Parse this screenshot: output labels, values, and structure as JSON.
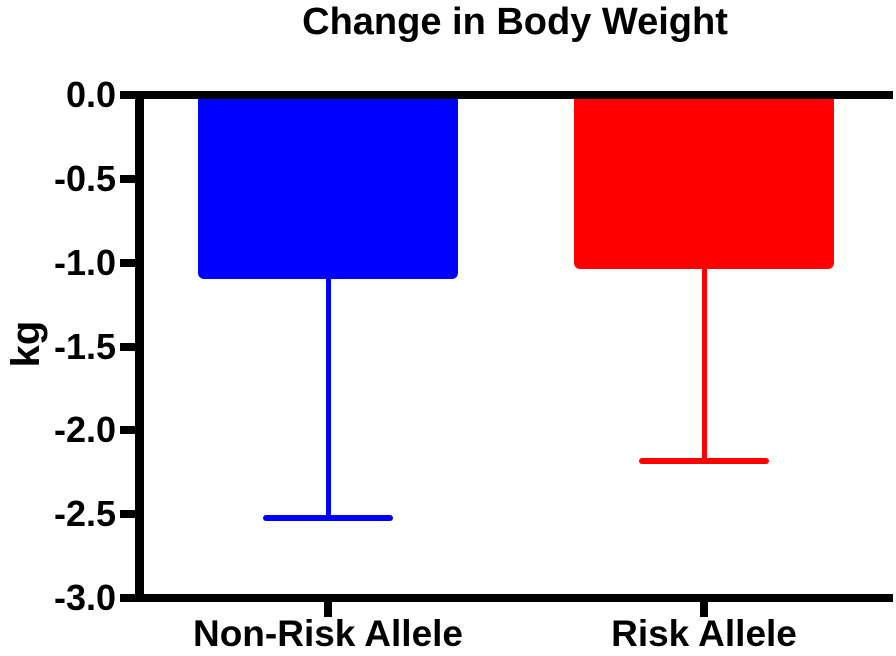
{
  "chart_data": {
    "type": "bar",
    "title": "Change in Body Weight",
    "ylabel": "kg",
    "xlabel": "",
    "categories": [
      "Non-Risk Allele",
      "Risk Allele"
    ],
    "values": [
      -1.1,
      -1.04
    ],
    "error_whisker_to": [
      -2.52,
      -2.18
    ],
    "bar_colors": [
      "#0000ff",
      "#ff0000"
    ],
    "axis_color": "#000000",
    "text_color": "#000000",
    "background_color": "#ffffff",
    "ylim": [
      -3.0,
      0.0
    ],
    "yticks": [
      {
        "value": 0.0,
        "label": "0.0"
      },
      {
        "value": -0.5,
        "label": "-0.5"
      },
      {
        "value": -1.0,
        "label": "-1.0"
      },
      {
        "value": -1.5,
        "label": "-1.5"
      },
      {
        "value": -2.0,
        "label": "-2.0"
      },
      {
        "value": -2.5,
        "label": "-2.5"
      },
      {
        "value": -3.0,
        "label": "-3.0"
      }
    ],
    "grid": false,
    "legend": "none",
    "error_bar_style": "lower whisker with cap, colored same as bar"
  }
}
